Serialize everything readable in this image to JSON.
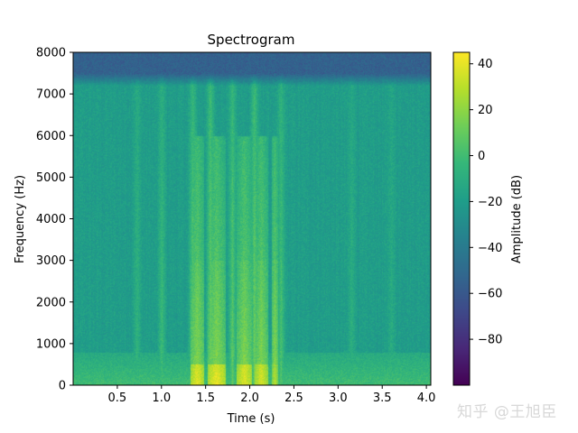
{
  "watermark": "知乎 @王旭臣",
  "colors": {
    "viridis": [
      "#440154",
      "#482878",
      "#3e4989",
      "#31688e",
      "#26828e",
      "#1f9e89",
      "#35b779",
      "#6ece58",
      "#b5de2b",
      "#fde725"
    ]
  },
  "chart_data": {
    "type": "heatmap",
    "title": "Spectrogram",
    "xlabel": "Time (s)",
    "ylabel": "Frequency (Hz)",
    "xlim": [
      0,
      4.05
    ],
    "ylim": [
      0,
      8000
    ],
    "xticks": [
      0.5,
      1.0,
      1.5,
      2.0,
      2.5,
      3.0,
      3.5,
      4.0
    ],
    "xtick_labels": [
      "0.5",
      "1.0",
      "1.5",
      "2.0",
      "2.5",
      "3.0",
      "3.5",
      "4.0"
    ],
    "yticks": [
      0,
      1000,
      2000,
      3000,
      4000,
      5000,
      6000,
      7000,
      8000
    ],
    "ytick_labels": [
      "0",
      "1000",
      "2000",
      "3000",
      "4000",
      "5000",
      "6000",
      "7000",
      "8000"
    ],
    "colormap": "viridis",
    "colorbar": {
      "label": "Amplitude (dB)",
      "vmin": -100,
      "vmax": 45,
      "ticks": [
        40,
        20,
        0,
        -20,
        -40,
        -60,
        -80
      ],
      "tick_labels": [
        "40",
        "20",
        "0",
        "−20",
        "−40",
        "−60",
        "−80"
      ]
    },
    "background_level_db": -20,
    "low_freq_band": {
      "max_freq_hz": 800,
      "level_db": 0
    },
    "high_freq_band": {
      "min_freq_hz": 7200,
      "level_db": -55
    },
    "speech_segments": [
      {
        "t_start": 1.32,
        "t_end": 1.48,
        "peak_db": 40
      },
      {
        "t_start": 1.52,
        "t_end": 1.72,
        "peak_db": 42
      },
      {
        "t_start": 1.85,
        "t_end": 2.02,
        "peak_db": 40
      },
      {
        "t_start": 2.05,
        "t_end": 2.2,
        "peak_db": 38
      },
      {
        "t_start": 2.24,
        "t_end": 2.32,
        "peak_db": 30
      }
    ],
    "vertical_bursts": [
      {
        "t": 0.72,
        "level_db": -5
      },
      {
        "t": 1.0,
        "level_db": 0
      },
      {
        "t": 1.35,
        "level_db": 10
      },
      {
        "t": 1.55,
        "level_db": 15
      },
      {
        "t": 1.8,
        "level_db": 10
      },
      {
        "t": 2.05,
        "level_db": 15
      },
      {
        "t": 2.35,
        "level_db": 5
      },
      {
        "t": 3.15,
        "level_db": -8
      },
      {
        "t": 3.6,
        "level_db": -10
      }
    ]
  }
}
